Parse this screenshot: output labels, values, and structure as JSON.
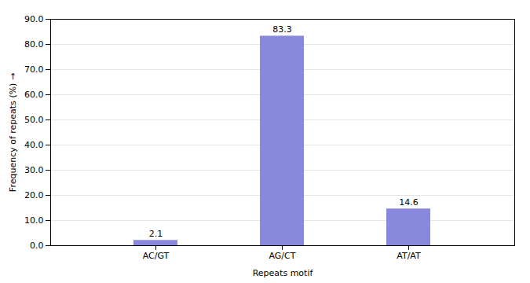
{
  "chart_data": {
    "type": "bar",
    "xlabel": "Repeats motif",
    "ylabel": "Frequency of repeats (%)",
    "categories": [
      "AC/GT",
      "AG/CT",
      "AT/AT"
    ],
    "values": [
      2.1,
      83.3,
      14.6
    ],
    "color": "#8888dd",
    "ylim": [
      0,
      90
    ],
    "yticks": [
      {
        "value": 0,
        "label": "0.0"
      },
      {
        "value": 10,
        "label": "10.0"
      },
      {
        "value": 20,
        "label": "20.0"
      },
      {
        "value": 30,
        "label": "30.0"
      },
      {
        "value": 40,
        "label": "40.0"
      },
      {
        "value": 50,
        "label": "50.0"
      },
      {
        "value": 60,
        "label": "60.0"
      },
      {
        "value": 70,
        "label": "70.0"
      },
      {
        "value": 80,
        "label": "80.0"
      },
      {
        "value": 90,
        "label": "90.0"
      }
    ],
    "grid": true,
    "data_labels": true
  }
}
